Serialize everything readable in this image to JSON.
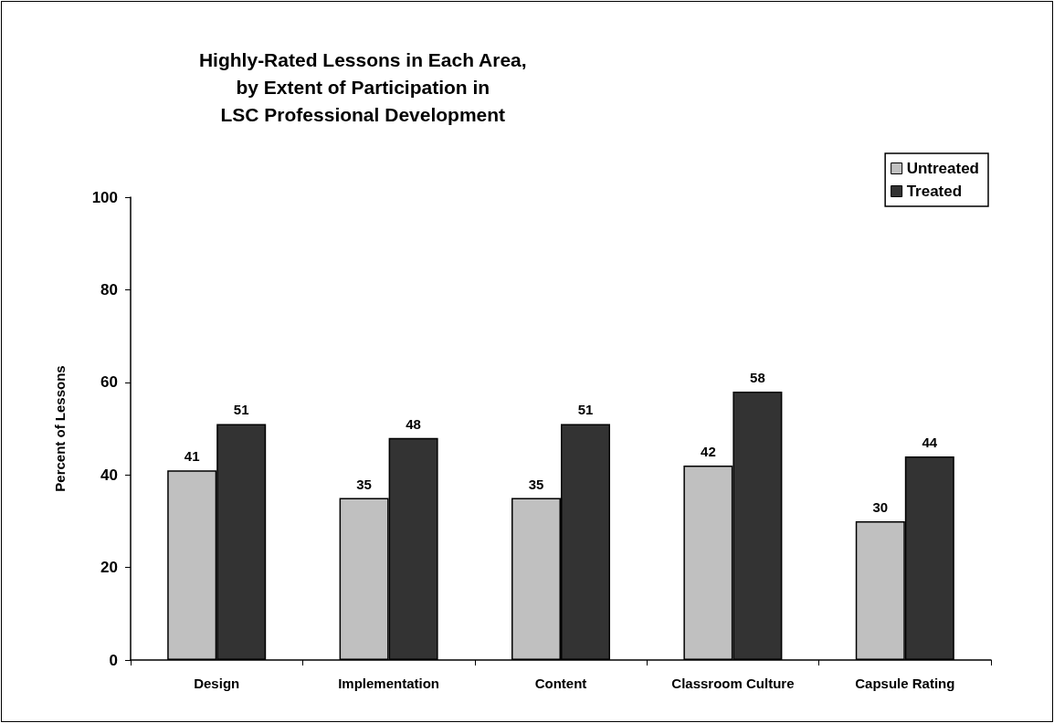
{
  "chart_data": {
    "type": "bar",
    "title": "Highly-Rated Lessons in Each Area,\nby Extent of Participation in\nLSC Professional Development",
    "ylabel": "Percent of Lessons",
    "categories": [
      "Design",
      "Implementation",
      "Content",
      "Classroom Culture",
      "Capsule Rating"
    ],
    "series": [
      {
        "name": "Untreated",
        "color": "#c0c0c0",
        "values": [
          41,
          35,
          35,
          42,
          30
        ]
      },
      {
        "name": "Treated",
        "color": "#333333",
        "values": [
          51,
          48,
          51,
          58,
          44
        ]
      }
    ],
    "ylim": [
      0,
      100
    ],
    "yticks": [
      0,
      20,
      40,
      60,
      80,
      100
    ],
    "data_labels": true,
    "legend": "top right"
  }
}
